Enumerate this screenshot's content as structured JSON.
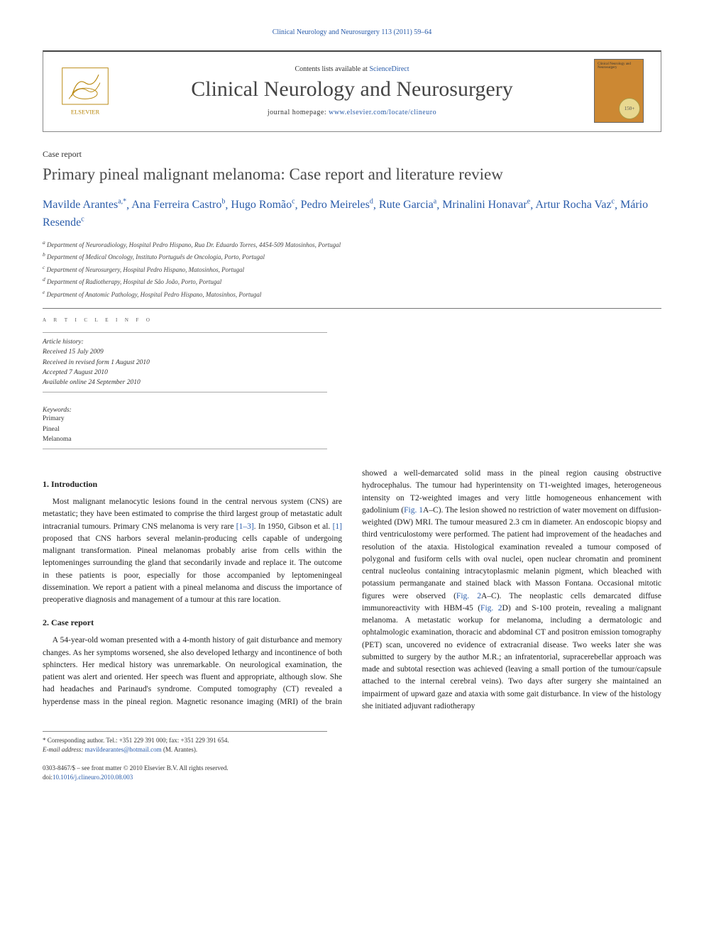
{
  "running_header": "Clinical Neurology and Neurosurgery 113 (2011) 59–64",
  "masthead": {
    "contents_prefix": "Contents lists available at ",
    "contents_link": "ScienceDirect",
    "journal_name": "Clinical Neurology and Neurosurgery",
    "homepage_prefix": "journal homepage: ",
    "homepage_url": "www.elsevier.com/locate/clineuro",
    "publisher_name": "ELSEVIER",
    "cover_title": "Clinical Neurology and Neurosurgery",
    "cover_badge": "150+"
  },
  "article_type": "Case report",
  "article_title": "Primary pineal malignant melanoma: Case report and literature review",
  "authors": [
    {
      "name": "Mavilde Arantes",
      "affil": "a,",
      "corr": "*"
    },
    {
      "name": "Ana Ferreira Castro",
      "affil": "b",
      "corr": ""
    },
    {
      "name": "Hugo Romão",
      "affil": "c",
      "corr": ""
    },
    {
      "name": "Pedro Meireles",
      "affil": "d",
      "corr": ""
    },
    {
      "name": "Rute Garcia",
      "affil": "a",
      "corr": ""
    },
    {
      "name": "Mrinalini Honavar",
      "affil": "e",
      "corr": ""
    },
    {
      "name": "Artur Rocha Vaz",
      "affil": "c",
      "corr": ""
    },
    {
      "name": "Mário Resende",
      "affil": "c",
      "corr": ""
    }
  ],
  "affiliations": [
    {
      "key": "a",
      "text": "Department of Neuroradiology, Hospital Pedro Hispano, Rua Dr. Eduardo Torres, 4454-509 Matosinhos, Portugal"
    },
    {
      "key": "b",
      "text": "Department of Medical Oncology, Instituto Português de Oncologia, Porto, Portugal"
    },
    {
      "key": "c",
      "text": "Department of Neurosurgery, Hospital Pedro Hispano, Matosinhos, Portugal"
    },
    {
      "key": "d",
      "text": "Department of Radiotherapy, Hospital de São João, Porto, Portugal"
    },
    {
      "key": "e",
      "text": "Department of Anatomic Pathology, Hospital Pedro Hispano, Matosinhos, Portugal"
    }
  ],
  "article_info": {
    "heading": "A R T I C L E   I N F O",
    "history_label": "Article history:",
    "received": "Received 15 July 2009",
    "revised": "Received in revised form 1 August 2010",
    "accepted": "Accepted 7 August 2010",
    "online": "Available online 24 September 2010",
    "keywords_label": "Keywords:",
    "keywords": [
      "Primary",
      "Pineal",
      "Melanoma"
    ]
  },
  "sections": {
    "s1_title": "1.  Introduction",
    "s1_p1": "Most malignant melanocytic lesions found in the central nervous system (CNS) are metastatic; they have been estimated to comprise the third largest group of metastatic adult intracranial tumours. Primary CNS melanoma is very rare [1–3]. In 1950, Gibson et al. [1] proposed that CNS harbors several melanin-producing cells capable of undergoing malignant transformation. Pineal melanomas probably arise from cells within the leptomeninges surrounding the gland that secondarily invade and replace it. The outcome in these patients is poor, especially for those accompanied by leptomeningeal dissemination. We report a patient with a pineal melanoma and discuss the importance of preoperative diagnosis and management of a tumour at this rare location.",
    "s2_title": "2.  Case report",
    "s2_p1": "A 54-year-old woman presented with a 4-month history of gait disturbance and memory changes. As her symptoms worsened, she also developed lethargy and incontinence of both sphincters. Her medical history was unremarkable. On neurological examination, the patient was alert and oriented. Her speech was fluent and appropriate, although slow. She had headaches and Parinaud's syndrome. Computed tomography (CT) revealed a hyperdense mass in the pineal region. Magnetic resonance imaging (MRI) of the brain showed a well-demarcated solid mass in the pineal region causing obstructive hydrocephalus. The tumour had hyperintensity on T1-weighted images, heterogeneous intensity on T2-weighted images and very little homogeneous enhancement with gadolinium (Fig. 1A–C). The lesion showed no restriction of water movement on diffusion-weighted (DW) MRI. The tumour measured 2.3 cm in diameter. An endoscopic biopsy and third ventriculostomy were performed. The patient had improvement of the headaches and resolution of the ataxia. Histological examination revealed a tumour composed of polygonal and fusiform cells with oval nuclei, open nuclear chromatin and prominent central nucleolus containing intracytoplasmic melanin pigment, which bleached with potassium permanganate and stained black with Masson Fontana. Occasional mitotic figures were observed (Fig. 2A–C). The neoplastic cells demarcated diffuse immunoreactivity with HBM-45 (Fig. 2D) and S-100 protein, revealing a malignant melanoma. A metastatic workup for melanoma, including a dermatologic and ophtalmologic examination, thoracic and abdominal CT and positron emission tomography (PET) scan, uncovered no evidence of extracranial disease. Two weeks later she was submitted to surgery by the author M.R.; an infratentorial, supracerebellar approach was made and subtotal resection was achieved (leaving a small portion of the tumour/capsule attached to the internal cerebral veins). Two days after surgery she maintained an impairment of upward gaze and ataxia with some gait disturbance. In view of the histology she initiated adjuvant radiotherapy"
  },
  "figure_refs": {
    "fig1": "Fig. 1",
    "fig2a": "Fig. 2",
    "fig2b": "Fig. 2"
  },
  "citation_refs": {
    "r1_3": "[1–3]",
    "r1": "[1]"
  },
  "footnote": {
    "corr_label": "* Corresponding author. Tel.: +351 229 391 000; fax: +351 229 391 654.",
    "email_label": "E-mail address:",
    "email": "mavildearantes@hotmail.com",
    "email_who": "(M. Arantes)."
  },
  "copyright": {
    "issn_line": "0303-8467/$ – see front matter © 2010 Elsevier B.V. All rights reserved.",
    "doi_label": "doi:",
    "doi": "10.1016/j.clineuro.2010.08.003"
  },
  "colors": {
    "link": "#2a5caa",
    "text": "#222222",
    "rule": "#777777",
    "cover_bg": "#cc8833"
  }
}
